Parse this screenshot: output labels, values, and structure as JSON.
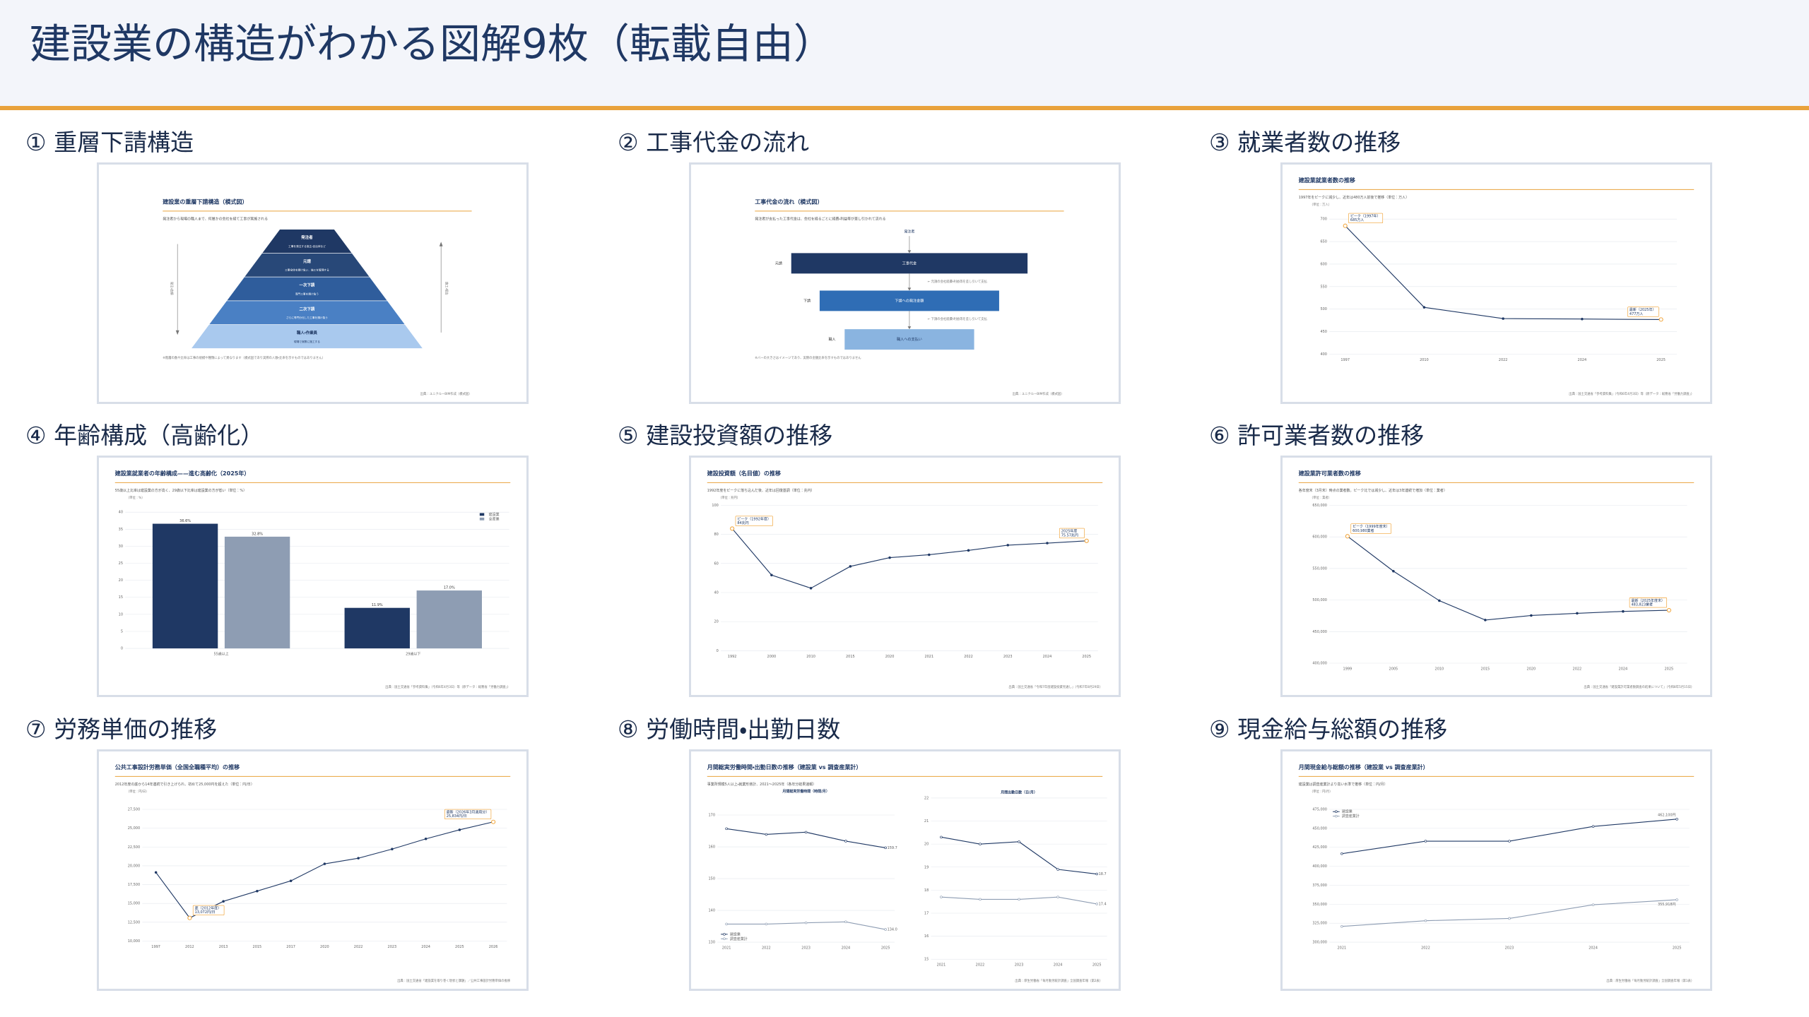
{
  "header": {
    "title": "建設業の構造がわかる図解9枚（転載自由）"
  },
  "panels": [
    {
      "heading": "① 重層下請構造",
      "diagram": {
        "type": "pyramid",
        "title": "建設業の重層下請構造（模式図）",
        "subtitle": "発注者から現場の職人まで、何層かの会社を経て工事が実施される",
        "levels": [
          {
            "label": "発注者",
            "desc": "工事を発注する施主・自治体など"
          },
          {
            "label": "元請",
            "desc": "工事全体を請け負い、施工を管理する"
          },
          {
            "label": "一次下請",
            "desc": "専門工事を請け負う"
          },
          {
            "label": "二次下請",
            "desc": "さらに専門分化した工事を請け負う"
          },
          {
            "label": "職人・作業員",
            "desc": "現場で実際に施工する"
          }
        ],
        "left_arrow": "発注・依頼",
        "right_arrow": "施工・報告",
        "note": "※階層の数や比率は工事の規模や種類によって異なります（模式図であり実際の人数・比率を示すものではありません）",
        "source": "出典：ユニクルーBIM作成（模式図）"
      }
    },
    {
      "heading": "② 工事代金の流れ",
      "diagram": {
        "type": "flow",
        "title": "工事代金の流れ（模式図）",
        "subtitle": "発注者が支払った工事代金は、会社を経るごとに経費・利益等が差し引かれて流れる",
        "top": "発注者",
        "steps": [
          {
            "role": "元請",
            "label": "工事代金",
            "note": "← 元請の会社経費・利益等を差し引いて支払"
          },
          {
            "role": "下請",
            "label": "下請への発注金額",
            "note": "← 下請の会社経費・利益等を差し引いて支払"
          },
          {
            "role": "職人",
            "label": "職人への支払い"
          }
        ],
        "note": "※バーの大きさはイメージであり、実際の金額比率を示すものではありません",
        "source": "出典：ユニクルーBIM作成（模式図）"
      }
    },
    {
      "heading": "③ 就業者数の推移",
      "chart": {
        "type": "line",
        "title": "建設業就業者数の推移",
        "subtitle": "1997年をピークに減少し、近年は480万人前後で推移（単位：万人）",
        "y_unit": "（単位：万人）",
        "categories": [
          "1997",
          "2010",
          "2022",
          "2024",
          "2025"
        ],
        "series": [
          {
            "color": "#1f3864",
            "values": [
              685,
              504,
              479,
              478,
              477
            ]
          }
        ],
        "ylim": [
          400,
          700
        ],
        "yticks": [
          400,
          450,
          500,
          550,
          600,
          650,
          700
        ],
        "grid": true,
        "marker": "filled",
        "accent": "#f0a030",
        "annotations": [
          {
            "title": "ピーク（1997年）",
            "text": "685万人"
          },
          {
            "title": "最新（2025年）",
            "text": "477万人"
          }
        ],
        "source": "出典：国土交通省「参考資料集」（令和6年4月3日）等（原データ：総務省「労働力調査」）"
      }
    },
    {
      "heading": "④ 年齢構成（高齢化）",
      "chart": {
        "type": "grouped-bar",
        "title": "建設業就業者の年齢構成——進む高齢化（2025年）",
        "subtitle": "55歳以上比率は建設業の方が高く、29歳以下比率は建設業の方が低い（単位：%）",
        "y_unit": "（単位：%）",
        "categories": [
          "55歳以上",
          "29歳以下"
        ],
        "series": [
          {
            "name": "建設業",
            "color": "#1f3864",
            "values": [
              36.6,
              11.9
            ],
            "value_labels": [
              "36.6%",
              "11.9%"
            ]
          },
          {
            "name": "全産業",
            "color": "#8e9db3",
            "values": [
              32.8,
              17.0
            ],
            "value_labels": [
              "32.8%",
              "17.0%"
            ]
          }
        ],
        "ylim": [
          0,
          40
        ],
        "yticks": [
          0,
          5,
          10,
          15,
          20,
          25,
          30,
          35,
          40
        ],
        "grid": true,
        "legend": "top-right",
        "source": "出典：国土交通省「参考資料集」（令和6年4月3日）等（原データ：総務省「労働力調査」）"
      }
    },
    {
      "heading": "⑤ 建設投資額の推移",
      "chart": {
        "type": "line",
        "title": "建設投資額（名目値）の推移",
        "subtitle": "1992年度をピークに落ち込んだ後、近年は回復基調（単位：兆円）",
        "y_unit": "（単位：兆円）",
        "categories": [
          "1992",
          "2000",
          "2010",
          "2015",
          "2020",
          "2021",
          "2022",
          "2023",
          "2024",
          "2025"
        ],
        "series": [
          {
            "color": "#1f3864",
            "values": [
              84,
              52,
              43,
              58,
              64,
              66,
              69,
              72.6,
              74,
              75.57
            ]
          }
        ],
        "ylim": [
          0,
          100
        ],
        "yticks": [
          0,
          20,
          40,
          60,
          80,
          100
        ],
        "grid": true,
        "marker": "filled",
        "accent": "#f0a030",
        "annotations": [
          {
            "title": "ピーク（1992年度）",
            "text": "84兆円"
          },
          {
            "title": "2025年度",
            "text": "75.57兆円"
          }
        ],
        "source": "出典：国土交通省「令和7年度建設投資見通し」（令和7年8月29日）"
      }
    },
    {
      "heading": "⑥ 許可業者数の推移",
      "chart": {
        "type": "line",
        "title": "建設業許可業者数の推移",
        "subtitle": "各年度末（3月末）時点の業者数。ピーク比では減少し、近年は3年連続で増加（単位：業者）",
        "y_unit": "（単位：業者）",
        "categories": [
          "1999",
          "2005",
          "2010",
          "2015",
          "2020",
          "2022",
          "2024",
          "2025"
        ],
        "series": [
          {
            "color": "#1f3864",
            "values": [
              600980,
              545700,
              499000,
              468300,
              475500,
              479000,
              482000,
              483823
            ]
          }
        ],
        "ylim": [
          400000,
          650000
        ],
        "yticks": [
          {
            "value": 400000,
            "label": "400,000"
          },
          {
            "value": 450000,
            "label": "450,000"
          },
          {
            "value": 500000,
            "label": "500,000"
          },
          {
            "value": 550000,
            "label": "550,000"
          },
          {
            "value": 600000,
            "label": "600,000"
          },
          {
            "value": 650000,
            "label": "650,000"
          }
        ],
        "grid": true,
        "marker": "filled",
        "accent": "#f0a030",
        "annotations": [
          {
            "title": "ピーク（1999年度末）",
            "text": "600,980業者"
          },
          {
            "title": "最新（2025年度末）",
            "text": "483,823業者"
          }
        ],
        "source": "出典：国土交通省「建設業許可業者数調査の結果について」（令和8年5月15日）"
      }
    },
    {
      "heading": "⑦ 労務単価の推移",
      "chart": {
        "type": "line",
        "title": "公共工事設計労務単価（全国全職種平均）の推移",
        "subtitle": "2012年度の底から14年連続で引き上げられ、初めて25,000円を超えた（単位：円/日）",
        "y_unit": "（単位：円/日）",
        "categories": [
          "1997",
          "2012",
          "2013",
          "2015",
          "2017",
          "2020",
          "2022",
          "2023",
          "2024",
          "2025",
          "2026"
        ],
        "series": [
          {
            "color": "#1f3864",
            "values": [
              19121,
              13072,
              15280,
              16640,
              18000,
              20260,
              21010,
              22220,
              23580,
              24780,
              25834
            ]
          }
        ],
        "ylim": [
          10000,
          27500
        ],
        "yticks": [
          {
            "value": 10000,
            "label": "10,000"
          },
          {
            "value": 12500,
            "label": "12,500"
          },
          {
            "value": 15000,
            "label": "15,000"
          },
          {
            "value": 17500,
            "label": "17,500"
          },
          {
            "value": 20000,
            "label": "20,000"
          },
          {
            "value": 22500,
            "label": "22,500"
          },
          {
            "value": 25000,
            "label": "25,000"
          },
          {
            "value": 27500,
            "label": "27,500"
          }
        ],
        "grid": true,
        "marker": "filled",
        "accent": "#f0a030",
        "annotations": [
          {
            "title": "底（2012年度）",
            "text": "13,072円/日"
          },
          {
            "title": "最新（2026年3月適用分）",
            "text": "25,834円/日"
          }
        ],
        "source": "出典：国土交通省「建設業を取り巻く現状と課題」／公共工事設計労務単価の推移"
      }
    },
    {
      "heading": "⑧ 労働時間・出勤日数",
      "chart": {
        "type": "line-pair",
        "title": "月間総実労働時間・出勤日数の推移（建設業 vs 調査産業計）",
        "subtitle": "事業所規模5人以上・就業形態計、2021〜2025年（各年分結果速報）",
        "legend": "bottom-left",
        "plots": [
          {
            "title": "月間総実労働時間（時間/月）",
            "categories": [
              "2021",
              "2022",
              "2023",
              "2024",
              "2025"
            ],
            "ylim": [
              130,
              170
            ],
            "yticks": [
              130,
              140,
              150,
              160,
              170
            ],
            "series": [
              {
                "name": "建設業",
                "color": "#1f3864",
                "values": [
                  165.7,
                  163.9,
                  164.6,
                  161.8,
                  159.7
                ],
                "label_last": true
              },
              {
                "name": "調査産業計",
                "color": "#8e9db3",
                "values": [
                  135.7,
                  135.7,
                  136.1,
                  136.4,
                  134.0
                ],
                "value_labels": [
                  null,
                  null,
                  null,
                  null,
                  "134.0"
                ],
                "label_last": true
              }
            ]
          },
          {
            "title": "月間出勤日数（日/月）",
            "categories": [
              "2021",
              "2022",
              "2023",
              "2024",
              "2025"
            ],
            "ylim": [
              15,
              22
            ],
            "yticks": [
              15,
              16,
              17,
              18,
              19,
              20,
              21,
              22
            ],
            "series": [
              {
                "color": "#1f3864",
                "values": [
                  20.3,
                  20.0,
                  20.1,
                  18.9,
                  18.7
                ],
                "label_last": true
              },
              {
                "color": "#8e9db3",
                "values": [
                  17.7,
                  17.6,
                  17.6,
                  17.7,
                  17.4
                ],
                "label_last": true
              }
            ]
          }
        ],
        "grid": true,
        "marker": "hollow",
        "source": "出典：厚生労働省「毎月勤労統計調査」全国調査年報（第2表）"
      }
    },
    {
      "heading": "⑨ 現金給与総額の推移",
      "chart": {
        "type": "line",
        "title": "月間現金給与総額の推移（建設業 vs 調査産業計）",
        "subtitle": "建設業は調査産業計より高い水準で推移（単位：円/月）",
        "y_unit": "（単位：円/月）",
        "categories": [
          "2021",
          "2022",
          "2023",
          "2024",
          "2025"
        ],
        "series": [
          {
            "name": "建設業",
            "color": "#1f3864",
            "values": [
              416600,
              433100,
              433100,
              452500,
              462100
            ],
            "value_labels": [
              null,
              null,
              null,
              null,
              "462,100円"
            ],
            "label_last": true
          },
          {
            "name": "調査産業計",
            "color": "#8e9db3",
            "values": [
              320800,
              328300,
              331300,
              349300,
              355918
            ],
            "value_labels": [
              null,
              null,
              null,
              null,
              "355,918円"
            ],
            "label_last": true
          }
        ],
        "ylim": [
          300000,
          475000
        ],
        "yticks": [
          {
            "value": 300000,
            "label": "300,000"
          },
          {
            "value": 325000,
            "label": "325,000"
          },
          {
            "value": 350000,
            "label": "350,000"
          },
          {
            "value": 375000,
            "label": "375,000"
          },
          {
            "value": 400000,
            "label": "400,000"
          },
          {
            "value": 425000,
            "label": "425,000"
          },
          {
            "value": 450000,
            "label": "450,000"
          },
          {
            "value": 475000,
            "label": "475,000"
          }
        ],
        "grid": true,
        "marker": "hollow",
        "legend": "top-left",
        "source": "出典：厚生労働省「毎月勤労統計調査」全国調査年報（第1表）"
      }
    }
  ]
}
